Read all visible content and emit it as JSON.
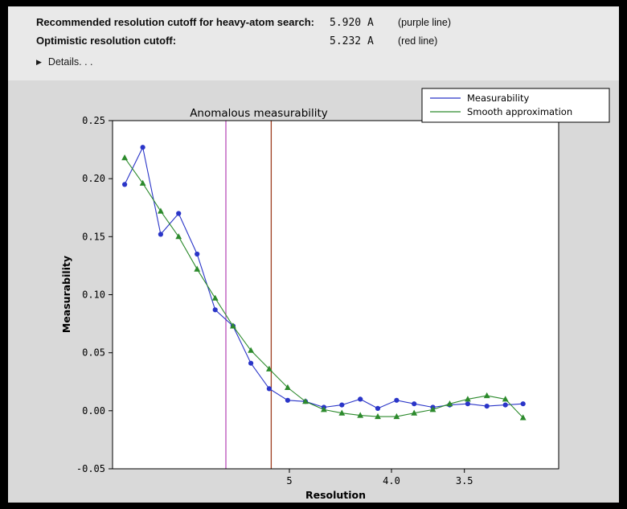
{
  "window": {
    "background": "#000000",
    "panel_background": "#e9e9e9",
    "figure_background": "#d9d9d9"
  },
  "header": {
    "rows": [
      {
        "label": "Recommended resolution cutoff for heavy-atom search:",
        "value": "5.920 A",
        "note": "(purple line)"
      },
      {
        "label": "Optimistic resolution cutoff:",
        "value": "5.232 A",
        "note": "(red line)"
      }
    ],
    "details_arrow": "▶",
    "details_label": "Details. . ."
  },
  "chart_data": {
    "type": "line",
    "title": "Anomalous measurability",
    "xlabel": "Resolution",
    "ylabel": "Measurability",
    "x_axis": {
      "unit": "A",
      "scale": "1/d",
      "s_range": [
        0.1134,
        0.3319
      ],
      "ticks": [
        {
          "d": 5.0,
          "label": "5"
        },
        {
          "d": 4.0,
          "label": "4.0"
        },
        {
          "d": 3.5,
          "label": "3.5"
        }
      ]
    },
    "y_axis": {
      "min": -0.05,
      "max": 0.25,
      "ticks": [
        {
          "v": 0.25,
          "label": "0.25"
        },
        {
          "v": 0.2,
          "label": "0.20"
        },
        {
          "v": 0.15,
          "label": "0.15"
        },
        {
          "v": 0.1,
          "label": "0.10"
        },
        {
          "v": 0.05,
          "label": "0.05"
        },
        {
          "v": 0.0,
          "label": "0.00"
        },
        {
          "v": -0.05,
          "label": "-0.05"
        }
      ]
    },
    "resolution_points_A": [
      8.38,
      7.8,
      7.3,
      6.86,
      6.46,
      6.11,
      5.8,
      5.52,
      5.26,
      5.02,
      4.81,
      4.61,
      4.43,
      4.26,
      4.11,
      3.96,
      3.83,
      3.7,
      3.59,
      3.48,
      3.37,
      3.27,
      3.18
    ],
    "series": [
      {
        "name": "Measurability",
        "color": "#2a35c8",
        "marker": "circle",
        "values": [
          0.195,
          0.227,
          0.152,
          0.17,
          0.135,
          0.087,
          0.073,
          0.041,
          0.019,
          0.009,
          0.008,
          0.003,
          0.005,
          0.01,
          0.002,
          0.009,
          0.006,
          0.003,
          0.005,
          0.006,
          0.004,
          0.005,
          0.006
        ]
      },
      {
        "name": "Smooth approximation",
        "color": "#2c8a2c",
        "marker": "triangle",
        "values": [
          0.218,
          0.196,
          0.172,
          0.15,
          0.122,
          0.097,
          0.073,
          0.052,
          0.036,
          0.02,
          0.008,
          0.001,
          -0.002,
          -0.004,
          -0.005,
          -0.005,
          -0.002,
          0.001,
          0.006,
          0.01,
          0.013,
          0.01,
          -0.006
        ]
      }
    ],
    "vlines": [
      {
        "name": "purple-cutoff-line",
        "d": 5.92,
        "color": "#b84db8"
      },
      {
        "name": "red-cutoff-line",
        "d": 5.232,
        "color": "#9e3d20"
      }
    ],
    "legend": {
      "position": "upper right"
    }
  }
}
